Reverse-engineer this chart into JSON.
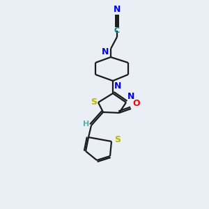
{
  "background_color": "#eaeff5",
  "bond_color": "#1a1a1a",
  "nitrogen_color": "#0000ee",
  "oxygen_color": "#ff0000",
  "sulfur_color": "#b8b800",
  "carbon_nitrile_color": "#008080",
  "hydrogen_color": "#5aadad",
  "figsize": [
    3.0,
    3.0
  ],
  "dpi": 100,
  "xlim": [
    0,
    300
  ],
  "ylim": [
    0,
    300
  ]
}
